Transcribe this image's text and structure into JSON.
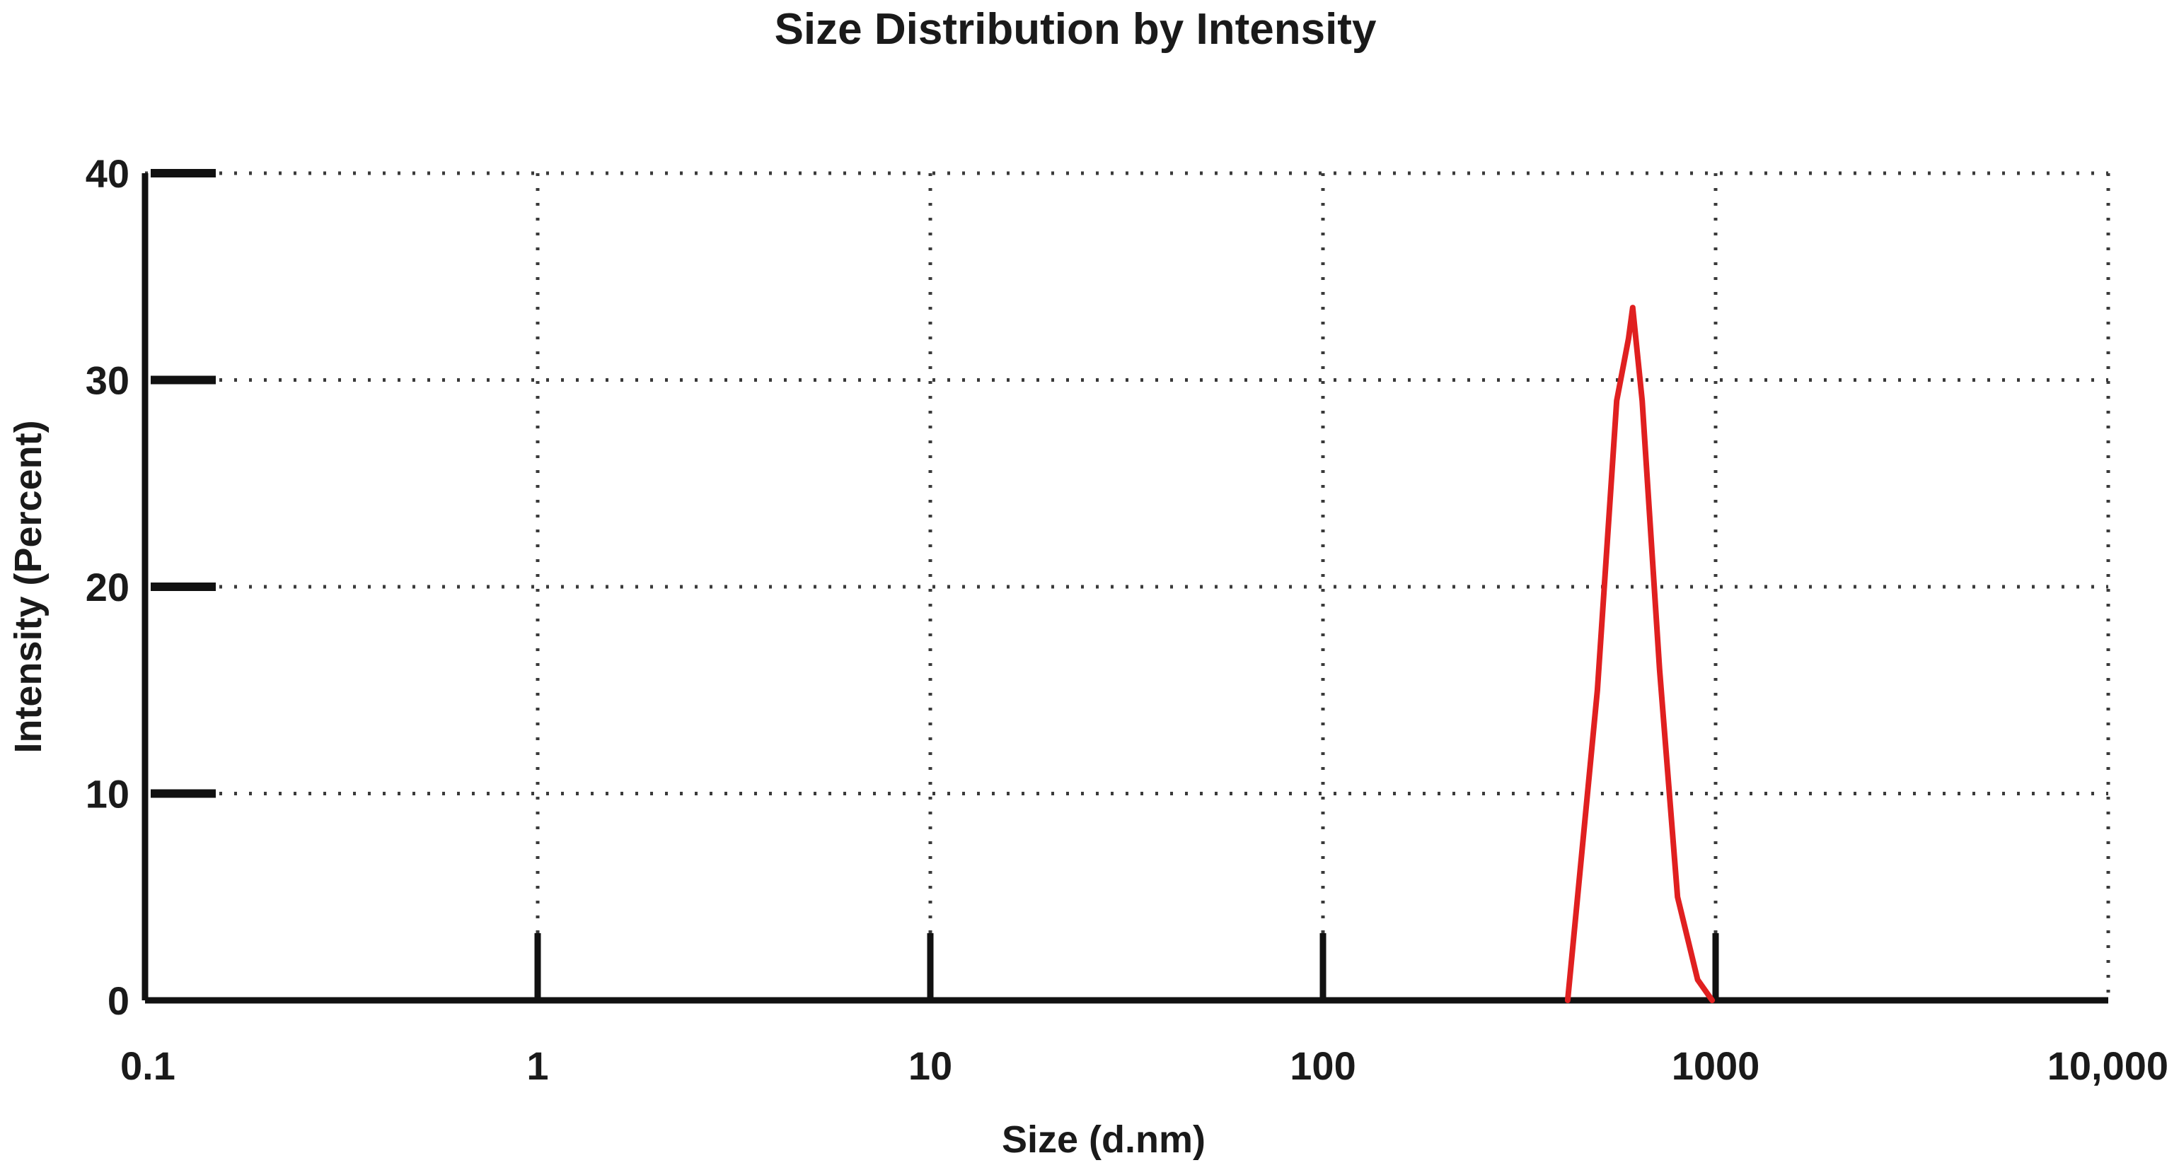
{
  "chart_data": {
    "type": "line",
    "title": "Size Distribution by Intensity",
    "xlabel": "Size (d.nm)",
    "ylabel": "Intensity (Percent)",
    "xscale": "log",
    "xlim": [
      0.1,
      10000
    ],
    "ylim": [
      0,
      40
    ],
    "xticks": [
      0.1,
      1,
      10,
      100,
      1000,
      10000
    ],
    "xtick_labels": [
      "0.1",
      "1",
      "10",
      "100",
      "1000",
      "10,000"
    ],
    "yticks": [
      0,
      10,
      20,
      30,
      40
    ],
    "ytick_labels": [
      "0",
      "10",
      "20",
      "30",
      "40"
    ],
    "grid": true,
    "legend": "none",
    "series": [
      {
        "color": "#e02020",
        "x": [
          420,
          500,
          560,
          600,
          615,
          650,
          720,
          800,
          900,
          980
        ],
        "y": [
          0,
          15,
          29,
          32,
          33.5,
          29,
          16,
          5,
          1,
          0
        ]
      }
    ]
  }
}
